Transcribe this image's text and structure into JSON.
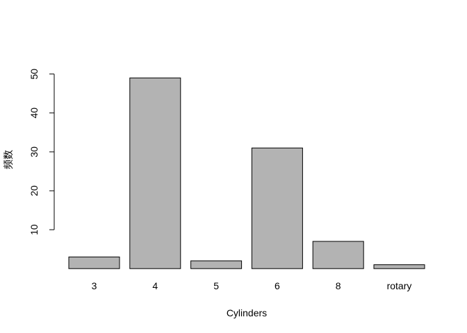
{
  "chart_data": {
    "type": "bar",
    "categories": [
      "3",
      "4",
      "5",
      "6",
      "8",
      "rotary"
    ],
    "values": [
      3,
      49,
      2,
      31,
      7,
      1
    ],
    "title": "",
    "xlabel": "Cylinders",
    "ylabel": "频数",
    "ylim": [
      0,
      50
    ],
    "yticks": [
      10,
      20,
      30,
      40,
      50
    ],
    "grid": false,
    "legend": "none",
    "bar_color": "#b3b3b3",
    "bar_border": "#000000"
  }
}
